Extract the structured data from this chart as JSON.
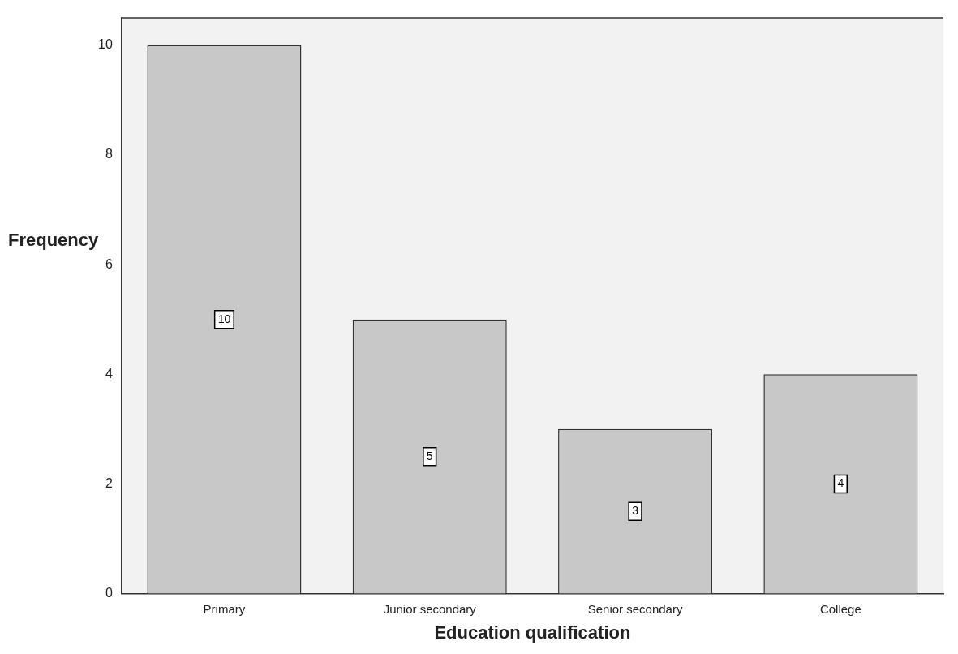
{
  "chart_data": {
    "type": "bar",
    "xlabel": "Education qualification",
    "ylabel": "Frequency",
    "categories": [
      "Primary",
      "Junior secondary",
      "Senior secondary",
      "College"
    ],
    "values": [
      10,
      5,
      3,
      4
    ],
    "color": "#c8c8c8",
    "ylim": [
      0,
      10.5
    ],
    "yticks": [
      0,
      2,
      4,
      6,
      8,
      10
    ],
    "grid": false,
    "data_labels": true,
    "legend": false
  }
}
